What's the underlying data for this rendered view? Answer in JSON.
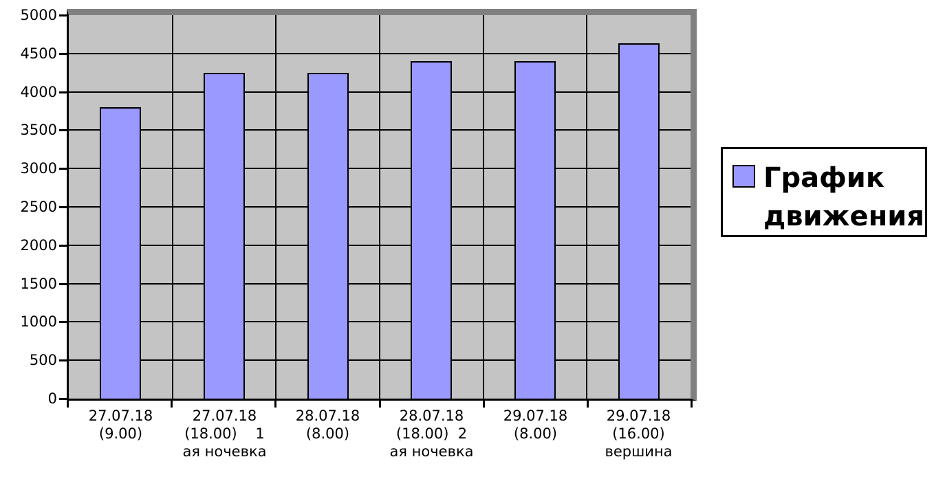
{
  "chart_data": {
    "type": "bar",
    "title": "",
    "xlabel": "",
    "ylabel": "",
    "ylim": [
      0,
      5000
    ],
    "ytick_step": 500,
    "grid": "major horizontal and vertical category gridlines, black on gray plot area",
    "legend_position": "right",
    "legend_label": "График движения",
    "series": [
      {
        "name": "График движения",
        "values": [
          3800,
          4250,
          4250,
          4400,
          4400,
          4630
        ]
      }
    ],
    "categories": [
      [
        "27.07.18",
        "(9.00)"
      ],
      [
        "27.07.18",
        "(18.00)    1",
        "ая ночевка"
      ],
      [
        "28.07.18",
        "(8.00)"
      ],
      [
        "28.07.18",
        "(18.00)  2",
        "ая ночевка"
      ],
      [
        "29.07.18",
        "(8.00)"
      ],
      [
        "29.07.18",
        "(16.00)",
        "вершина"
      ]
    ],
    "colors": {
      "bar_fill": "#9999FF",
      "bar_border": "#000000",
      "plot_bg": "#C4C4C4",
      "plot_frame": "#808080",
      "grid_color": "#000000",
      "axis_color": "#000000",
      "text_color": "#000000",
      "background": "#FFFFFF"
    }
  }
}
